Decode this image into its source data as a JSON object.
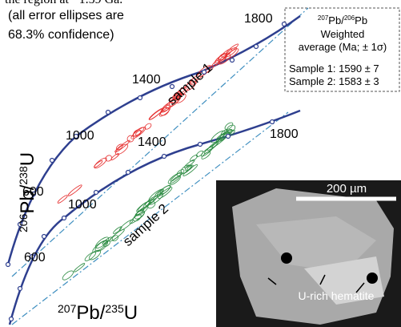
{
  "caption_fragment": "the region at ~1.59 Ga.",
  "note": [
    "(all error ellipses are",
    "68.3% confidence)"
  ],
  "legend": {
    "ratio": {
      "mass1": "207",
      "el1": "Pb",
      "mass2": "206",
      "el2": "Pb"
    },
    "lines": [
      "Weighted",
      "average (Ma; ± 1σ)"
    ],
    "samples": [
      "Sample 1: 1590 ± 7",
      "Sample 2: 1583 ± 3"
    ]
  },
  "y_axis": {
    "mass1": "206",
    "el1": "Pb",
    "mass2": "238",
    "el2": "U"
  },
  "x_axis": {
    "mass1": "207",
    "el1": "Pb",
    "mass2": "235",
    "el2": "U"
  },
  "concordia_1": {
    "labels": [
      "600",
      "1000",
      "1400",
      "1800"
    ],
    "sample": "sample 1"
  },
  "concordia_2": {
    "labels": [
      "600",
      "1000",
      "1400",
      "1800"
    ],
    "sample": "sample 2"
  },
  "inset": {
    "scale": "200 µm",
    "annotation": "U-rich hematite"
  }
}
